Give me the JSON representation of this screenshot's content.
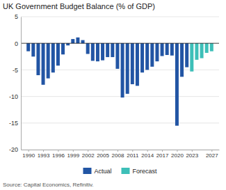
{
  "chart_data": {
    "type": "bar",
    "title": "UK Government Budget Balance (% of GDP)",
    "annotations": [
      "Source: Capital Economics, Refinitiv."
    ],
    "x": [
      1990,
      1991,
      1992,
      1993,
      1994,
      1995,
      1996,
      1997,
      1998,
      1999,
      2000,
      2001,
      2002,
      2003,
      2004,
      2005,
      2006,
      2007,
      2008,
      2009,
      2010,
      2011,
      2012,
      2013,
      2014,
      2015,
      2016,
      2017,
      2018,
      2019,
      2020,
      2021,
      2022,
      2023,
      2024,
      2025,
      2026,
      2027
    ],
    "series": [
      {
        "name": "Actual",
        "color": "#2255a4",
        "values": [
          -1.5,
          -2.5,
          -6.0,
          -7.8,
          -6.6,
          -5.5,
          -4.2,
          -2.1,
          -0.4,
          0.8,
          1.1,
          0.6,
          -2.0,
          -3.3,
          -3.4,
          -3.2,
          -2.6,
          -2.6,
          -4.8,
          -10.2,
          -9.5,
          -7.7,
          -8.0,
          -5.5,
          -5.0,
          -4.4,
          -3.4,
          -2.4,
          -2.2,
          -2.3,
          -15.5,
          -6.3,
          -4.5,
          null,
          null,
          null,
          null,
          null
        ]
      },
      {
        "name": "Forecast",
        "color": "#3dbfb8",
        "values": [
          null,
          null,
          null,
          null,
          null,
          null,
          null,
          null,
          null,
          null,
          null,
          null,
          null,
          null,
          null,
          null,
          null,
          null,
          null,
          null,
          null,
          null,
          null,
          null,
          null,
          null,
          null,
          null,
          null,
          null,
          null,
          null,
          null,
          -5.3,
          -3.1,
          -2.8,
          -1.8,
          -1.5
        ]
      }
    ],
    "stacked": true,
    "xlim": [
      1988.5,
      2028.5
    ],
    "xticks": [
      1990,
      1993,
      1996,
      1999,
      2002,
      2005,
      2008,
      2011,
      2014,
      2017,
      2020,
      2023,
      2027
    ],
    "ylim": [
      -20,
      5
    ],
    "yticks": [
      -20,
      -15,
      -10,
      -5,
      0,
      5
    ],
    "grid": true,
    "legend": "bottom"
  }
}
